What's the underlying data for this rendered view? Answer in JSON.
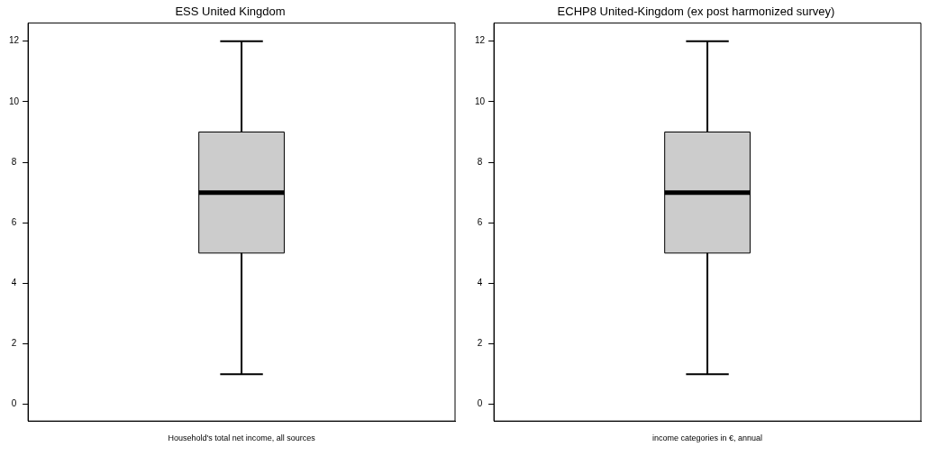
{
  "chart_data": [
    {
      "type": "box",
      "title": "ESS United Kingdom",
      "categories": [
        "Household's total net income, all sources"
      ],
      "boxes": [
        {
          "low": 1,
          "q1": 5,
          "median": 7,
          "q3": 9,
          "high": 12
        }
      ],
      "color": "#cccccc",
      "ylim": [
        -0.55,
        12.6
      ],
      "yticks": [
        0,
        2,
        4,
        6,
        8,
        10,
        12
      ]
    },
    {
      "type": "box",
      "title": "ECHP8 United-Kingdom (ex post harmonized survey)",
      "categories": [
        "income categories in €, annual"
      ],
      "boxes": [
        {
          "low": 1,
          "q1": 5,
          "median": 7,
          "q3": 9,
          "high": 12
        }
      ],
      "color": "#cccccc",
      "ylim": [
        -0.55,
        12.6
      ],
      "yticks": [
        0,
        2,
        4,
        6,
        8,
        10,
        12
      ]
    }
  ]
}
